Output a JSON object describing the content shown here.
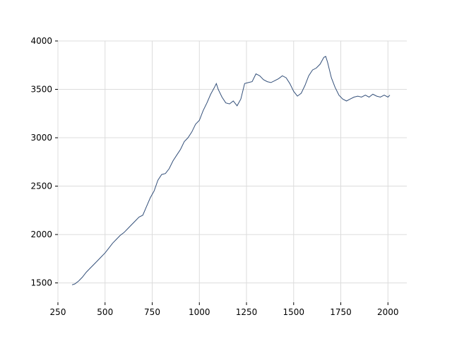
{
  "chart_data": {
    "type": "line",
    "title": "",
    "xlabel": "",
    "ylabel": "",
    "xlim": [
      250,
      2100
    ],
    "ylim": [
      1300,
      4000
    ],
    "x_ticks": [
      250,
      500,
      750,
      1000,
      1250,
      1500,
      1750,
      2000
    ],
    "y_ticks": [
      1500,
      2000,
      2500,
      3000,
      3500,
      4000
    ],
    "grid": true,
    "legend": "none",
    "line_color": "#34507a",
    "series": [
      {
        "x": [
          325,
          340,
          360,
          380,
          400,
          420,
          440,
          460,
          480,
          500,
          520,
          540,
          560,
          580,
          600,
          620,
          640,
          660,
          680,
          700,
          720,
          740,
          760,
          780,
          800,
          820,
          840,
          860,
          880,
          900,
          920,
          940,
          960,
          980,
          1000,
          1020,
          1040,
          1060,
          1080,
          1090,
          1100,
          1120,
          1140,
          1160,
          1180,
          1200,
          1220,
          1240,
          1260,
          1280,
          1300,
          1320,
          1340,
          1360,
          1380,
          1400,
          1420,
          1440,
          1460,
          1480,
          1500,
          1520,
          1540,
          1560,
          1580,
          1600,
          1620,
          1640,
          1660,
          1670,
          1680,
          1700,
          1720,
          1740,
          1760,
          1780,
          1800,
          1820,
          1840,
          1860,
          1880,
          1900,
          1920,
          1940,
          1960,
          1980,
          2000,
          2010
        ],
        "y": [
          1480,
          1490,
          1520,
          1560,
          1610,
          1650,
          1690,
          1730,
          1770,
          1810,
          1860,
          1910,
          1950,
          1990,
          2020,
          2060,
          2100,
          2140,
          2180,
          2200,
          2290,
          2380,
          2450,
          2560,
          2620,
          2630,
          2680,
          2760,
          2820,
          2880,
          2960,
          3000,
          3060,
          3140,
          3180,
          3280,
          3360,
          3450,
          3520,
          3560,
          3500,
          3420,
          3360,
          3350,
          3380,
          3330,
          3400,
          3560,
          3570,
          3580,
          3660,
          3640,
          3600,
          3580,
          3570,
          3590,
          3610,
          3640,
          3620,
          3560,
          3480,
          3430,
          3460,
          3540,
          3640,
          3700,
          3720,
          3760,
          3830,
          3840,
          3780,
          3620,
          3520,
          3440,
          3400,
          3380,
          3400,
          3420,
          3430,
          3420,
          3440,
          3420,
          3450,
          3430,
          3420,
          3440,
          3420,
          3440
        ]
      }
    ]
  }
}
